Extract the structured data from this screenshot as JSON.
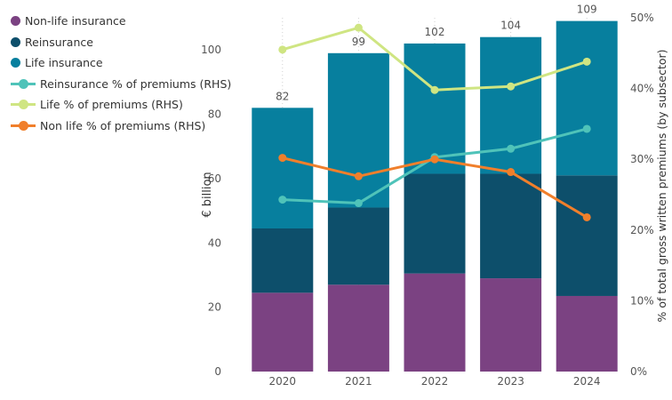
{
  "chart_data": {
    "type": "bar",
    "stacked": true,
    "categories": [
      "2020",
      "2021",
      "2022",
      "2023",
      "2024"
    ],
    "series": [
      {
        "name": "Non-life insurance",
        "type": "bar",
        "axis": "left",
        "color": "#7b4282",
        "values": [
          24.5,
          27,
          30.5,
          29,
          23.5
        ]
      },
      {
        "name": "Reinsurance",
        "type": "bar",
        "axis": "left",
        "color": "#0d4f6b",
        "values": [
          20,
          24,
          31,
          32.5,
          37.5
        ]
      },
      {
        "name": "Life insurance",
        "type": "bar",
        "axis": "left",
        "color": "#077f9e",
        "values": [
          37.5,
          48,
          40.5,
          42.5,
          48
        ]
      },
      {
        "name": "Reinsurance % of premiums (RHS)",
        "type": "line",
        "axis": "right",
        "color": "#4fc3b9",
        "values": [
          24.3,
          23.8,
          30.3,
          31.5,
          34.3
        ]
      },
      {
        "name": "Life % of premiums (RHS)",
        "type": "line",
        "axis": "right",
        "color": "#cfe582",
        "values": [
          45.5,
          48.6,
          39.8,
          40.3,
          43.8
        ]
      },
      {
        "name": "Non life % of premiums (RHS)",
        "type": "line",
        "axis": "right",
        "color": "#f07f2b",
        "values": [
          30.2,
          27.6,
          30.0,
          28.2,
          21.8
        ]
      }
    ],
    "totals": [
      "82",
      "99",
      "102",
      "104",
      "109"
    ],
    "ylabel": "€ billion",
    "y2label": "% of total gross written premiums (by subsector)",
    "ylim": [
      0,
      110
    ],
    "y2lim": [
      0,
      50
    ],
    "yticks": [
      "0",
      "20",
      "40",
      "60",
      "80",
      "100"
    ],
    "y2ticks": [
      "0%",
      "10%",
      "20%",
      "30%",
      "40%",
      "50%"
    ],
    "grid": "vertical dotted",
    "legend_position": "top-left"
  }
}
